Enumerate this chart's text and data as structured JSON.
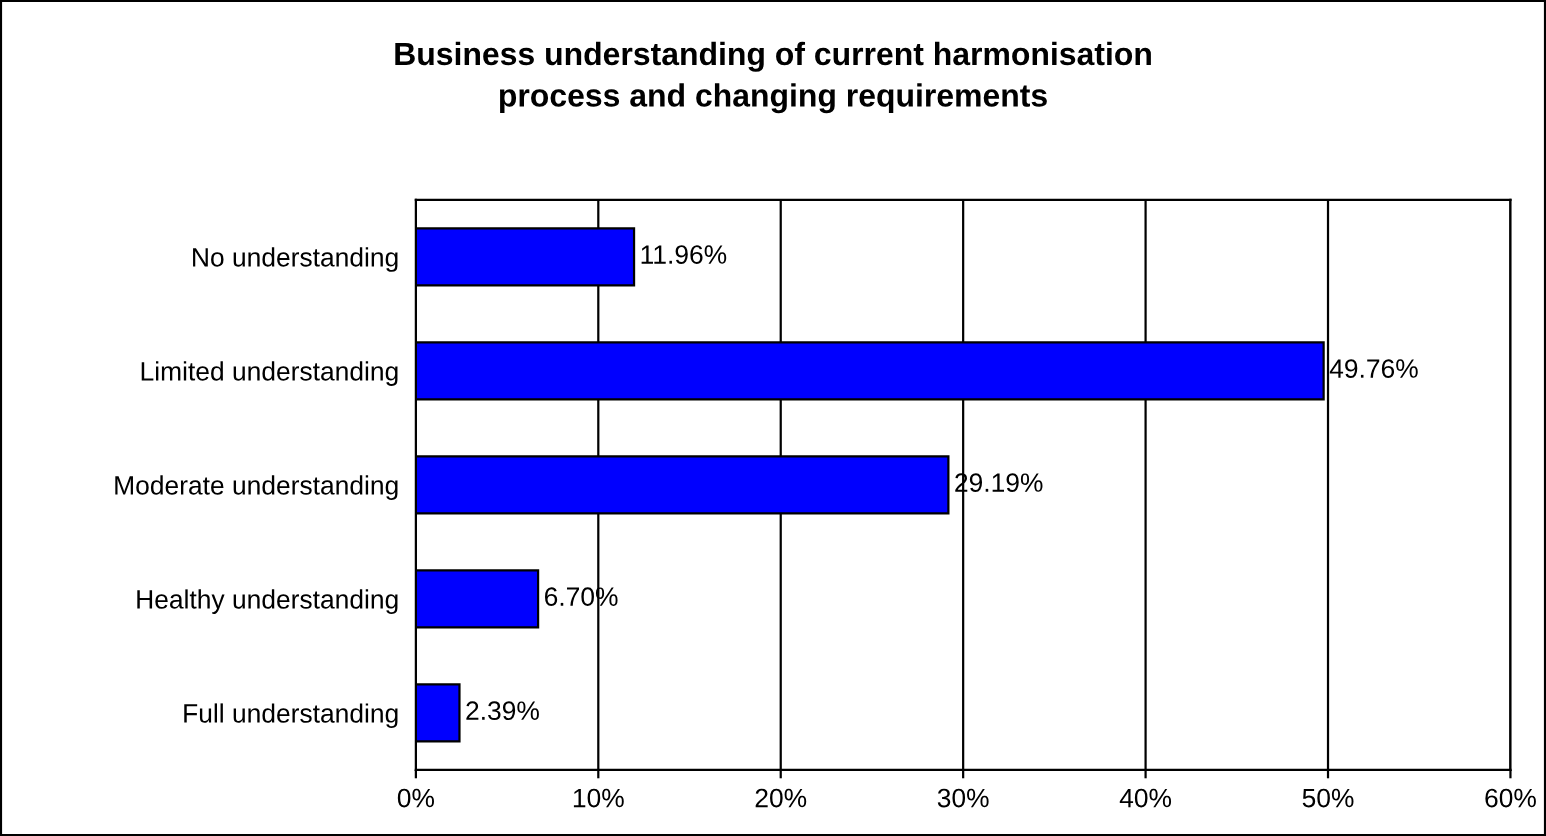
{
  "chart_data": {
    "type": "bar",
    "orientation": "horizontal",
    "title": "Business understanding of current harmonisation\nprocess and changing requirements",
    "categories": [
      "No understanding",
      "Limited understanding",
      "Moderate understanding",
      "Healthy understanding",
      "Full understanding"
    ],
    "values": [
      11.96,
      49.76,
      29.19,
      6.7,
      2.39
    ],
    "value_labels": [
      "11.96%",
      "49.76%",
      "29.19%",
      "6.70%",
      "2.39%"
    ],
    "color": "#0000ff",
    "xlim": [
      0,
      60
    ],
    "xticks": [
      {
        "value": 0,
        "label": "0%"
      },
      {
        "value": 10,
        "label": "10%"
      },
      {
        "value": 20,
        "label": "20%"
      },
      {
        "value": 30,
        "label": "30%"
      },
      {
        "value": 40,
        "label": "40%"
      },
      {
        "value": 50,
        "label": "50%"
      },
      {
        "value": 60,
        "label": "60%"
      }
    ],
    "grid": "x",
    "legend": false
  }
}
